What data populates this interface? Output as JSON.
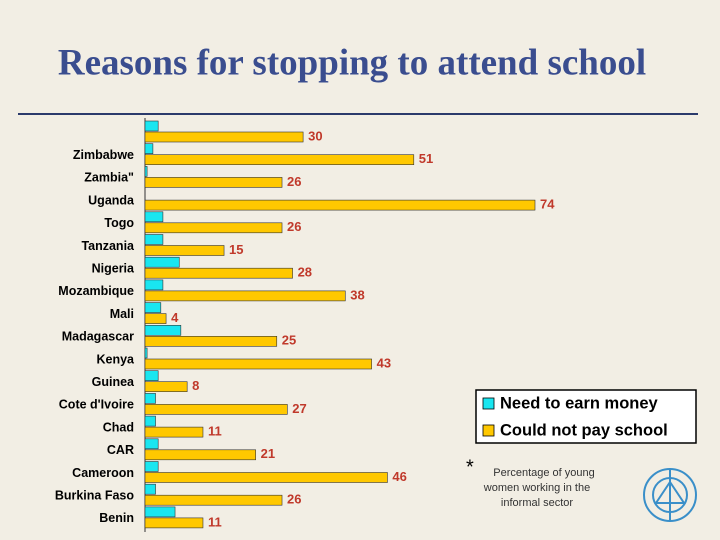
{
  "chart_data": {
    "type": "bar",
    "orientation": "horizontal",
    "title": "Reasons for stopping to attend school",
    "categories": [
      null,
      "Zimbabwe",
      "Zambia\"",
      "Uganda",
      "Togo",
      "Tanzania",
      "Nigeria",
      "Mozambique",
      "Mali",
      "Madagascar",
      "Kenya",
      "Guinea",
      "Cote d'Ivoire",
      "Chad",
      "CAR",
      "Cameroon",
      "Burkina Faso",
      "Benin"
    ],
    "series": [
      {
        "name": "Need to earn money",
        "color": "#19e6f0",
        "values": [
          2.5,
          1.5,
          0.4,
          0,
          3.4,
          3.4,
          6.5,
          3.4,
          3,
          6.8,
          0.4,
          2.5,
          2,
          2,
          2.5,
          2.5,
          2,
          5.7
        ]
      },
      {
        "name": "Could not pay school",
        "color": "#ffc800",
        "values": [
          30,
          51,
          26,
          74,
          26,
          15,
          28,
          38,
          4,
          25,
          43,
          8,
          27,
          11,
          21,
          46,
          26,
          11
        ]
      }
    ],
    "xlim": [
      0,
      80
    ],
    "footnote_marker": "*",
    "footnote": "Percentage of young women working in the informal sector"
  }
}
